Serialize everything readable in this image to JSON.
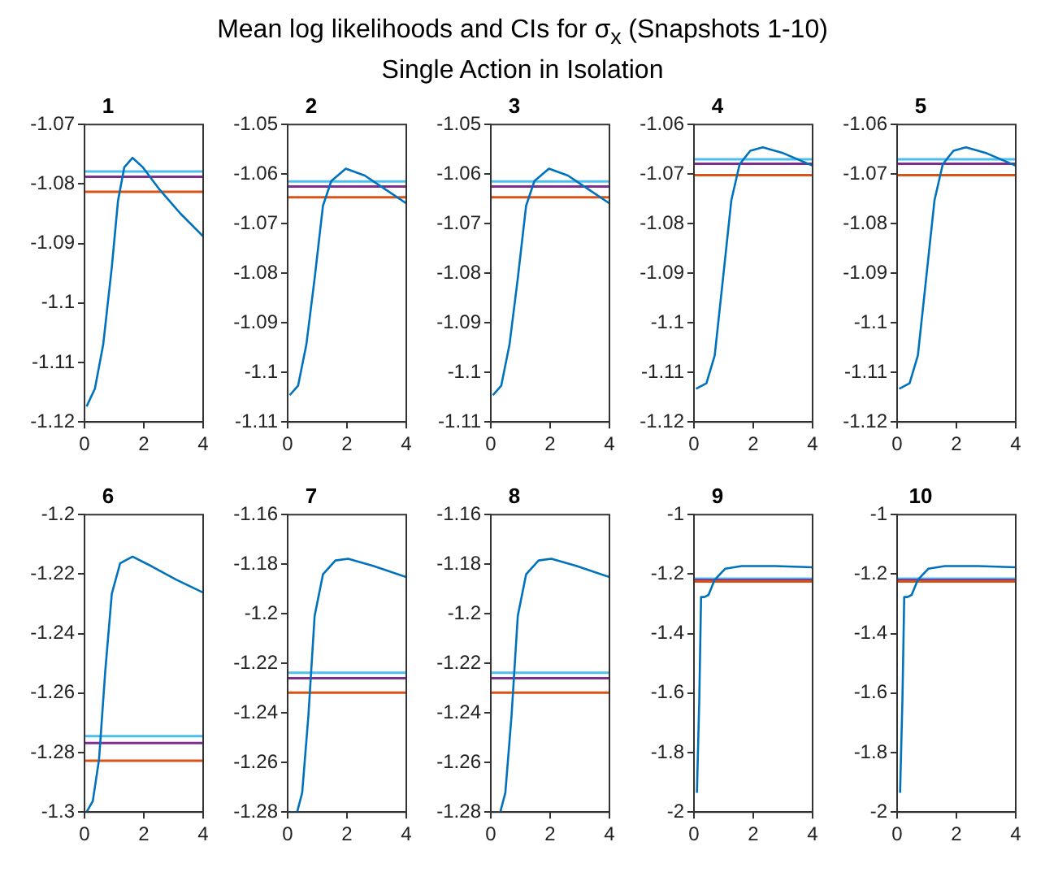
{
  "chart_data": [
    {
      "type": "line",
      "title": "1",
      "annotations": [
        "Mean log likelihoods and CIs for σ$_{x}$ (Snapshots 1-10)",
        "Single Action in Isolation"
      ],
      "xlim": [
        0,
        4
      ],
      "xticks": [
        0,
        2,
        4
      ],
      "ylim": [
        -1.12,
        -1.07
      ],
      "yticks": [
        -1.12,
        -1.11,
        -1.1,
        -1.09,
        -1.08,
        -1.07
      ],
      "x": [
        0.07,
        0.35,
        0.63,
        0.92,
        1.13,
        1.34,
        1.62,
        1.97,
        2.54,
        3.24,
        4
      ],
      "series": [
        {
          "color": "#0072bd",
          "values": [
            -1.1174,
            -1.1144,
            -1.107,
            -1.094,
            -1.0828,
            -1.0772,
            -1.0756,
            -1.0772,
            -1.081,
            -1.085,
            -1.0888
          ]
        }
      ],
      "ref_lines": [
        {
          "axis": "y",
          "value": -1.0779,
          "color": "#4dbeee"
        },
        {
          "axis": "y",
          "value": -1.0788,
          "color": "#7e2f8e"
        },
        {
          "axis": "y",
          "value": -1.0813,
          "color": "#d95319"
        }
      ]
    },
    {
      "type": "line",
      "title": "2",
      "xlim": [
        0,
        4
      ],
      "xticks": [
        0,
        2,
        4
      ],
      "ylim": [
        -1.11,
        -1.05
      ],
      "yticks": [
        -1.11,
        -1.1,
        -1.09,
        -1.08,
        -1.07,
        -1.06,
        -1.05
      ],
      "x": [
        0.07,
        0.35,
        0.63,
        0.91,
        1.19,
        1.47,
        1.96,
        2.6,
        3.3,
        4
      ],
      "series": [
        {
          "color": "#0072bd",
          "values": [
            -1.1046,
            -1.1027,
            -1.0944,
            -1.081,
            -1.0664,
            -1.0614,
            -1.0589,
            -1.0603,
            -1.0631,
            -1.0659
          ]
        }
      ],
      "ref_lines": [
        {
          "axis": "y",
          "value": -1.0615,
          "color": "#4dbeee"
        },
        {
          "axis": "y",
          "value": -1.0625,
          "color": "#7e2f8e"
        },
        {
          "axis": "y",
          "value": -1.0647,
          "color": "#d95319"
        }
      ]
    },
    {
      "type": "line",
      "title": "3",
      "xlim": [
        0,
        4
      ],
      "xticks": [
        0,
        2,
        4
      ],
      "ylim": [
        -1.11,
        -1.05
      ],
      "yticks": [
        -1.11,
        -1.1,
        -1.09,
        -1.08,
        -1.07,
        -1.06,
        -1.05
      ],
      "x": [
        0.07,
        0.35,
        0.63,
        0.91,
        1.19,
        1.47,
        1.96,
        2.6,
        3.3,
        4
      ],
      "series": [
        {
          "color": "#0072bd",
          "values": [
            -1.1046,
            -1.1027,
            -1.0944,
            -1.081,
            -1.0664,
            -1.0614,
            -1.0589,
            -1.0603,
            -1.0631,
            -1.0659
          ]
        }
      ],
      "ref_lines": [
        {
          "axis": "y",
          "value": -1.0615,
          "color": "#4dbeee"
        },
        {
          "axis": "y",
          "value": -1.0625,
          "color": "#7e2f8e"
        },
        {
          "axis": "y",
          "value": -1.0647,
          "color": "#d95319"
        }
      ]
    },
    {
      "type": "line",
      "title": "4",
      "xlim": [
        0,
        4
      ],
      "xticks": [
        0,
        2,
        4
      ],
      "ylim": [
        -1.12,
        -1.06
      ],
      "yticks": [
        -1.12,
        -1.11,
        -1.1,
        -1.09,
        -1.08,
        -1.07,
        -1.06
      ],
      "x": [
        0.07,
        0.42,
        0.7,
        0.98,
        1.26,
        1.54,
        1.9,
        2.32,
        3.02,
        4
      ],
      "series": [
        {
          "color": "#0072bd",
          "values": [
            -1.1133,
            -1.1122,
            -1.1066,
            -1.091,
            -1.0753,
            -1.068,
            -1.0653,
            -1.0646,
            -1.0658,
            -1.0683
          ]
        }
      ],
      "ref_lines": [
        {
          "axis": "y",
          "value": -1.067,
          "color": "#4dbeee"
        },
        {
          "axis": "y",
          "value": -1.0679,
          "color": "#7e2f8e"
        },
        {
          "axis": "y",
          "value": -1.0702,
          "color": "#d95319"
        }
      ]
    },
    {
      "type": "line",
      "title": "5",
      "xlim": [
        0,
        4
      ],
      "xticks": [
        0,
        2,
        4
      ],
      "ylim": [
        -1.12,
        -1.06
      ],
      "yticks": [
        -1.12,
        -1.11,
        -1.1,
        -1.09,
        -1.08,
        -1.07,
        -1.06
      ],
      "x": [
        0.07,
        0.42,
        0.7,
        0.98,
        1.26,
        1.54,
        1.9,
        2.32,
        3.02,
        4
      ],
      "series": [
        {
          "color": "#0072bd",
          "values": [
            -1.1133,
            -1.1122,
            -1.1066,
            -1.091,
            -1.0753,
            -1.068,
            -1.0653,
            -1.0646,
            -1.0658,
            -1.0683
          ]
        }
      ],
      "ref_lines": [
        {
          "axis": "y",
          "value": -1.067,
          "color": "#4dbeee"
        },
        {
          "axis": "y",
          "value": -1.0679,
          "color": "#7e2f8e"
        },
        {
          "axis": "y",
          "value": -1.0702,
          "color": "#d95319"
        }
      ]
    },
    {
      "type": "line",
      "title": "6",
      "xlim": [
        0,
        4
      ],
      "xticks": [
        0,
        2,
        4
      ],
      "ylim": [
        -1.3,
        -1.2
      ],
      "yticks": [
        -1.3,
        -1.28,
        -1.26,
        -1.24,
        -1.22,
        -1.2
      ],
      "x": [
        0.07,
        0.28,
        0.49,
        0.7,
        0.92,
        1.2,
        1.62,
        2.25,
        3.1,
        4
      ],
      "series": [
        {
          "color": "#0072bd",
          "values": [
            -1.3,
            -1.2963,
            -1.2823,
            -1.2526,
            -1.2266,
            -1.2164,
            -1.2141,
            -1.2173,
            -1.2219,
            -1.2262
          ]
        }
      ],
      "ref_lines": [
        {
          "axis": "y",
          "value": -1.2745,
          "color": "#4dbeee"
        },
        {
          "axis": "y",
          "value": -1.2768,
          "color": "#7e2f8e"
        },
        {
          "axis": "y",
          "value": -1.2827,
          "color": "#d95319"
        }
      ]
    },
    {
      "type": "line",
      "title": "7",
      "xlim": [
        0,
        4
      ],
      "xticks": [
        0,
        2,
        4
      ],
      "ylim": [
        -1.28,
        -1.16
      ],
      "yticks": [
        -1.28,
        -1.26,
        -1.24,
        -1.22,
        -1.2,
        -1.18,
        -1.16
      ],
      "x": [
        0.07,
        0.32,
        0.49,
        0.7,
        0.91,
        1.19,
        1.61,
        2.04,
        2.88,
        4
      ],
      "series": [
        {
          "color": "#0072bd",
          "values": [
            -1.28,
            -1.28,
            -1.2722,
            -1.241,
            -1.2008,
            -1.1841,
            -1.1785,
            -1.1778,
            -1.1807,
            -1.1852
          ]
        }
      ],
      "ref_lines": [
        {
          "axis": "y",
          "value": -1.2238,
          "color": "#4dbeee"
        },
        {
          "axis": "y",
          "value": -1.226,
          "color": "#7e2f8e"
        },
        {
          "axis": "y",
          "value": -1.2318,
          "color": "#d95319"
        }
      ]
    },
    {
      "type": "line",
      "title": "8",
      "xlim": [
        0,
        4
      ],
      "xticks": [
        0,
        2,
        4
      ],
      "ylim": [
        -1.28,
        -1.16
      ],
      "yticks": [
        -1.28,
        -1.26,
        -1.24,
        -1.22,
        -1.2,
        -1.18,
        -1.16
      ],
      "x": [
        0.07,
        0.32,
        0.49,
        0.7,
        0.91,
        1.19,
        1.61,
        2.04,
        2.88,
        4
      ],
      "series": [
        {
          "color": "#0072bd",
          "values": [
            -1.28,
            -1.28,
            -1.2722,
            -1.241,
            -1.2008,
            -1.1841,
            -1.1785,
            -1.1778,
            -1.1807,
            -1.1852
          ]
        }
      ],
      "ref_lines": [
        {
          "axis": "y",
          "value": -1.2238,
          "color": "#4dbeee"
        },
        {
          "axis": "y",
          "value": -1.226,
          "color": "#7e2f8e"
        },
        {
          "axis": "y",
          "value": -1.2318,
          "color": "#d95319"
        }
      ]
    },
    {
      "type": "line",
      "title": "9",
      "xlim": [
        0,
        4
      ],
      "xticks": [
        0,
        2,
        4
      ],
      "ylim": [
        -2,
        -1
      ],
      "yticks": [
        -2,
        -1.8,
        -1.6,
        -1.4,
        -1.2,
        -1
      ],
      "x": [
        0.1,
        0.18,
        0.24,
        0.35,
        0.49,
        0.7,
        1.05,
        1.61,
        2.74,
        4
      ],
      "series": [
        {
          "color": "#0072bd",
          "values": [
            -1.935,
            -1.62,
            -1.277,
            -1.277,
            -1.27,
            -1.219,
            -1.182,
            -1.173,
            -1.173,
            -1.177
          ]
        }
      ],
      "ref_lines": [
        {
          "axis": "y",
          "value": -1.215,
          "color": "#4dbeee"
        },
        {
          "axis": "y",
          "value": -1.22,
          "color": "#7e2f8e"
        },
        {
          "axis": "y",
          "value": -1.225,
          "color": "#d95319"
        }
      ]
    },
    {
      "type": "line",
      "title": "10",
      "xlim": [
        0,
        4
      ],
      "xticks": [
        0,
        2,
        4
      ],
      "ylim": [
        -2,
        -1
      ],
      "yticks": [
        -2,
        -1.8,
        -1.6,
        -1.4,
        -1.2,
        -1
      ],
      "x": [
        0.1,
        0.18,
        0.24,
        0.35,
        0.49,
        0.7,
        1.05,
        1.61,
        2.74,
        4
      ],
      "series": [
        {
          "color": "#0072bd",
          "values": [
            -1.935,
            -1.62,
            -1.277,
            -1.277,
            -1.27,
            -1.219,
            -1.182,
            -1.173,
            -1.173,
            -1.177
          ]
        }
      ],
      "ref_lines": [
        {
          "axis": "y",
          "value": -1.215,
          "color": "#4dbeee"
        },
        {
          "axis": "y",
          "value": -1.22,
          "color": "#7e2f8e"
        },
        {
          "axis": "y",
          "value": -1.225,
          "color": "#d95319"
        }
      ]
    }
  ]
}
